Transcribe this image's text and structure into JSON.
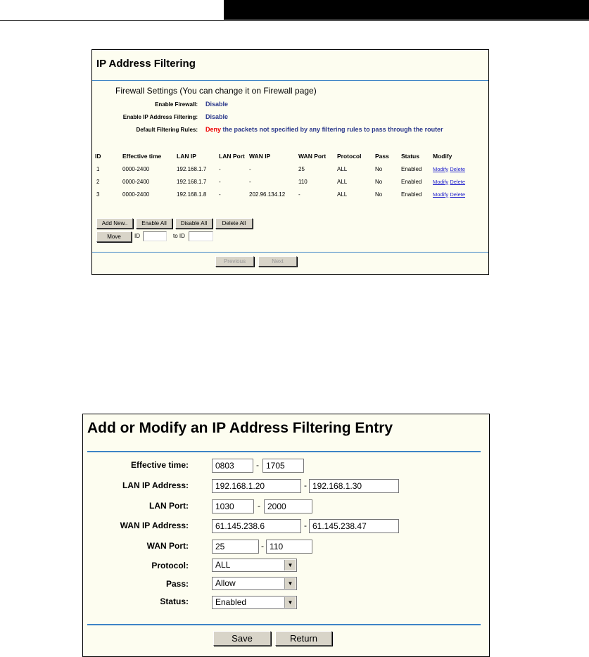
{
  "list": {
    "title": "IP Address Filtering",
    "firewall_heading": "Firewall Settings (You can change it on Firewall page)",
    "enable_firewall_label": "Enable Firewall:",
    "enable_firewall_value": "Disable",
    "enable_ip_label": "Enable IP Address Filtering:",
    "enable_ip_value": "Disable",
    "default_rules_label": "Default Filtering Rules:",
    "default_rules_deny": "Deny",
    "default_rules_text": " the packets not specified by any filtering rules to pass through the router",
    "columns": [
      "ID",
      "Effective time",
      "LAN IP",
      "LAN Port",
      "WAN IP",
      "WAN Port",
      "Protocol",
      "Pass",
      "Status",
      "Modify"
    ],
    "rows": [
      [
        "1",
        "0000-2400",
        "192.168.1.7",
        "-",
        "-",
        "25",
        "ALL",
        "No",
        "Enabled"
      ],
      [
        "2",
        "0000-2400",
        "192.168.1.7",
        "-",
        "-",
        "110",
        "ALL",
        "No",
        "Enabled"
      ],
      [
        "3",
        "0000-2400",
        "192.168.1.8",
        "-",
        "202.96.134.12",
        "-",
        "ALL",
        "No",
        "Enabled"
      ]
    ],
    "modify_link": "Modify",
    "delete_link": "Delete",
    "add_new": "Add New..",
    "enable_all": "Enable All",
    "disable_all": "Disable All",
    "delete_all": "Delete All",
    "move": "Move",
    "id_label": "ID",
    "to_id_label": "to ID",
    "previous": "Previous",
    "next": "Next"
  },
  "form": {
    "title": "Add or Modify an IP Address Filtering Entry",
    "effective_time_label": "Effective time:",
    "effective_time_start": "0803",
    "effective_time_end": "1705",
    "lan_ip_label": "LAN IP Address:",
    "lan_ip_start": "192.168.1.20",
    "lan_ip_end": "192.168.1.30",
    "lan_port_label": "LAN Port:",
    "lan_port_start": "1030",
    "lan_port_end": "2000",
    "wan_ip_label": "WAN IP Address:",
    "wan_ip_start": "61.145.238.6",
    "wan_ip_end": "61.145.238.47",
    "wan_port_label": "WAN Port:",
    "wan_port_start": "25",
    "wan_port_end": "110",
    "protocol_label": "Protocol:",
    "protocol_value": "ALL",
    "pass_label": "Pass:",
    "pass_value": "Allow",
    "status_label": "Status:",
    "status_value": "Enabled",
    "dash": "-",
    "save": "Save",
    "return": "Return"
  }
}
